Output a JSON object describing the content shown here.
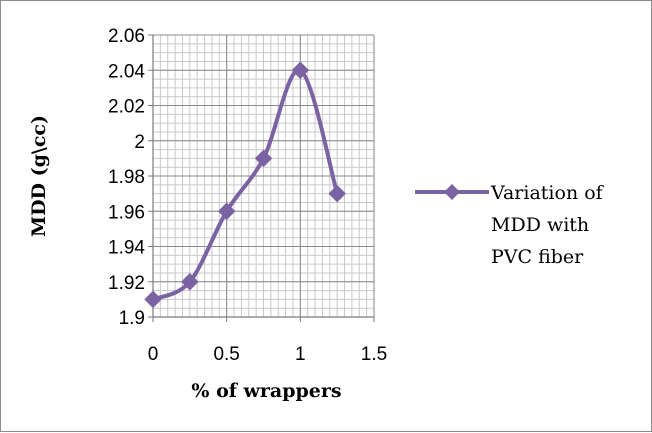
{
  "chart_data": {
    "type": "line",
    "title": "",
    "xlabel": "% of wrappers",
    "ylabel": "MDD (g\\cc)",
    "xlim": [
      0,
      1.5
    ],
    "ylim": [
      1.9,
      2.06
    ],
    "x_ticks": [
      {
        "value": 0,
        "label": "0"
      },
      {
        "value": 0.5,
        "label": "0.5"
      },
      {
        "value": 1,
        "label": "1"
      },
      {
        "value": 1.5,
        "label": "1.5"
      }
    ],
    "y_ticks": [
      {
        "value": 1.9,
        "label": "1.9"
      },
      {
        "value": 1.92,
        "label": "1.92"
      },
      {
        "value": 1.94,
        "label": "1.94"
      },
      {
        "value": 1.96,
        "label": "1.96"
      },
      {
        "value": 1.98,
        "label": "1.98"
      },
      {
        "value": 2.0,
        "label": "2"
      },
      {
        "value": 2.02,
        "label": "2.02"
      },
      {
        "value": 2.04,
        "label": "2.04"
      },
      {
        "value": 2.06,
        "label": "2.06"
      }
    ],
    "grid": true,
    "minor_grid": true,
    "series": [
      {
        "name": "Variation of MDD with PVC fiber",
        "legend_lines": [
          "Variation of",
          "MDD with",
          "PVC fiber"
        ],
        "color": "#7b62a3",
        "marker": "diamond",
        "smooth": true,
        "x": [
          0,
          0.25,
          0.5,
          0.75,
          1.0,
          1.25
        ],
        "y": [
          1.91,
          1.92,
          1.96,
          1.99,
          2.04,
          1.97
        ]
      }
    ],
    "legend_position": "right"
  }
}
